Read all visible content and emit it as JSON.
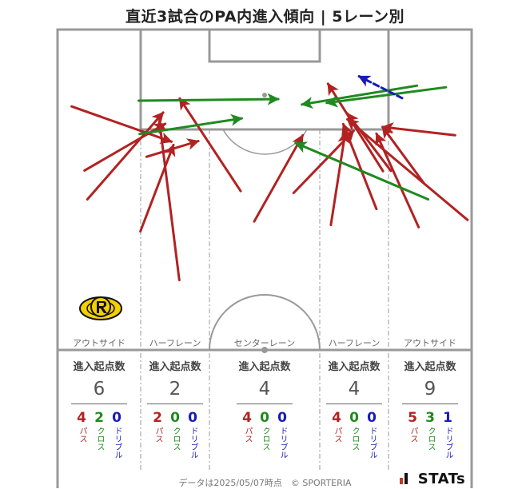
{
  "title": "直近3試合のPA内進入傾向 | 5レーン別",
  "colors": {
    "pass": "#b22222",
    "cross": "#1f8a1f",
    "dribble": "#1a1ab8",
    "pitch_line": "#999999"
  },
  "lanes": [
    {
      "name": "アウトサイド",
      "head": "進入起点数",
      "total": "6",
      "pass": "4",
      "cross": "2",
      "dribble": "0"
    },
    {
      "name": "ハーフレーン",
      "head": "進入起点数",
      "total": "2",
      "pass": "2",
      "cross": "0",
      "dribble": "0"
    },
    {
      "name": "センターレーン",
      "head": "進入起点数",
      "total": "4",
      "pass": "4",
      "cross": "0",
      "dribble": "0"
    },
    {
      "name": "ハーフレーン",
      "head": "進入起点数",
      "total": "4",
      "pass": "4",
      "cross": "0",
      "dribble": "0"
    },
    {
      "name": "アウトサイド",
      "head": "進入起点数",
      "total": "9",
      "pass": "5",
      "cross": "3",
      "dribble": "1"
    }
  ],
  "type_labels": {
    "pass": "パス",
    "cross": "クロス",
    "dribble": "ドリブル"
  },
  "badge_icon": "kashiwa-reysol-crest-icon",
  "footer": "データは2025/05/07時点　© SPORTERIA",
  "logo": {
    "text": "STATs",
    "icon": "stats-bars-icon"
  },
  "chart_data": {
    "type": "arrow-map",
    "title": "直近3試合のPA内進入傾向 | 5レーン別",
    "pitch_units": "x: 0-100 across pitch width (left to right), y: 0-100 distance from goal line",
    "entries": [
      {
        "kind": "pass",
        "from": [
          3.4,
          76.0
        ],
        "to": [
          27.5,
          65.0
        ]
      },
      {
        "kind": "pass",
        "from": [
          6.5,
          56.0
        ],
        "to": [
          26.0,
          70.6
        ]
      },
      {
        "kind": "pass",
        "from": [
          7.2,
          47.0
        ],
        "to": [
          25.5,
          74.1
        ]
      },
      {
        "kind": "pass",
        "from": [
          20.0,
          37.0
        ],
        "to": [
          28.0,
          64.0
        ]
      },
      {
        "kind": "pass",
        "from": [
          21.5,
          60.3
        ],
        "to": [
          34.0,
          65.2
        ]
      },
      {
        "kind": "pass",
        "from": [
          29.4,
          21.8
        ],
        "to": [
          24.6,
          71.5
        ]
      },
      {
        "kind": "pass",
        "from": [
          44.2,
          49.6
        ],
        "to": [
          29.5,
          78.5
        ]
      },
      {
        "kind": "pass",
        "from": [
          47.5,
          40.1
        ],
        "to": [
          59.2,
          67.0
        ]
      },
      {
        "kind": "pass",
        "from": [
          57.0,
          49.0
        ],
        "to": [
          71.5,
          68.4
        ]
      },
      {
        "kind": "pass",
        "from": [
          66.0,
          39.0
        ],
        "to": [
          69.5,
          68.0
        ]
      },
      {
        "kind": "pass",
        "from": [
          77.0,
          44.0
        ],
        "to": [
          69.0,
          70.5
        ]
      },
      {
        "kind": "pass",
        "from": [
          78.6,
          55.8
        ],
        "to": [
          65.3,
          83.1
        ]
      },
      {
        "kind": "pass",
        "from": [
          87.2,
          38.3
        ],
        "to": [
          77.0,
          67.5
        ]
      },
      {
        "kind": "pass",
        "from": [
          88.5,
          52.0
        ],
        "to": [
          78.5,
          69.6
        ]
      },
      {
        "kind": "pass",
        "from": [
          96.0,
          67.0
        ],
        "to": [
          78.5,
          69.6
        ]
      },
      {
        "kind": "pass",
        "from": [
          99.0,
          40.6
        ],
        "to": [
          70.0,
          72.0
        ]
      },
      {
        "kind": "pass",
        "from": [
          80.5,
          55.9
        ],
        "to": [
          70.0,
          73.8
        ]
      },
      {
        "kind": "cross",
        "from": [
          19.8,
          67.4
        ],
        "to": [
          44.5,
          72.3
        ]
      },
      {
        "kind": "cross",
        "from": [
          19.6,
          77.8
        ],
        "to": [
          53.3,
          78.3
        ]
      },
      {
        "kind": "cross",
        "from": [
          89.5,
          47.0
        ],
        "to": [
          57.5,
          64.6
        ]
      },
      {
        "kind": "cross",
        "from": [
          86.8,
          82.5
        ],
        "to": [
          59.0,
          76.6
        ]
      },
      {
        "kind": "cross",
        "from": [
          93.8,
          82.0
        ],
        "to": [
          65.0,
          77.1
        ]
      },
      {
        "kind": "dribble",
        "from": [
          83.2,
          78.6
        ],
        "to": [
          72.8,
          85.4
        ]
      }
    ]
  }
}
